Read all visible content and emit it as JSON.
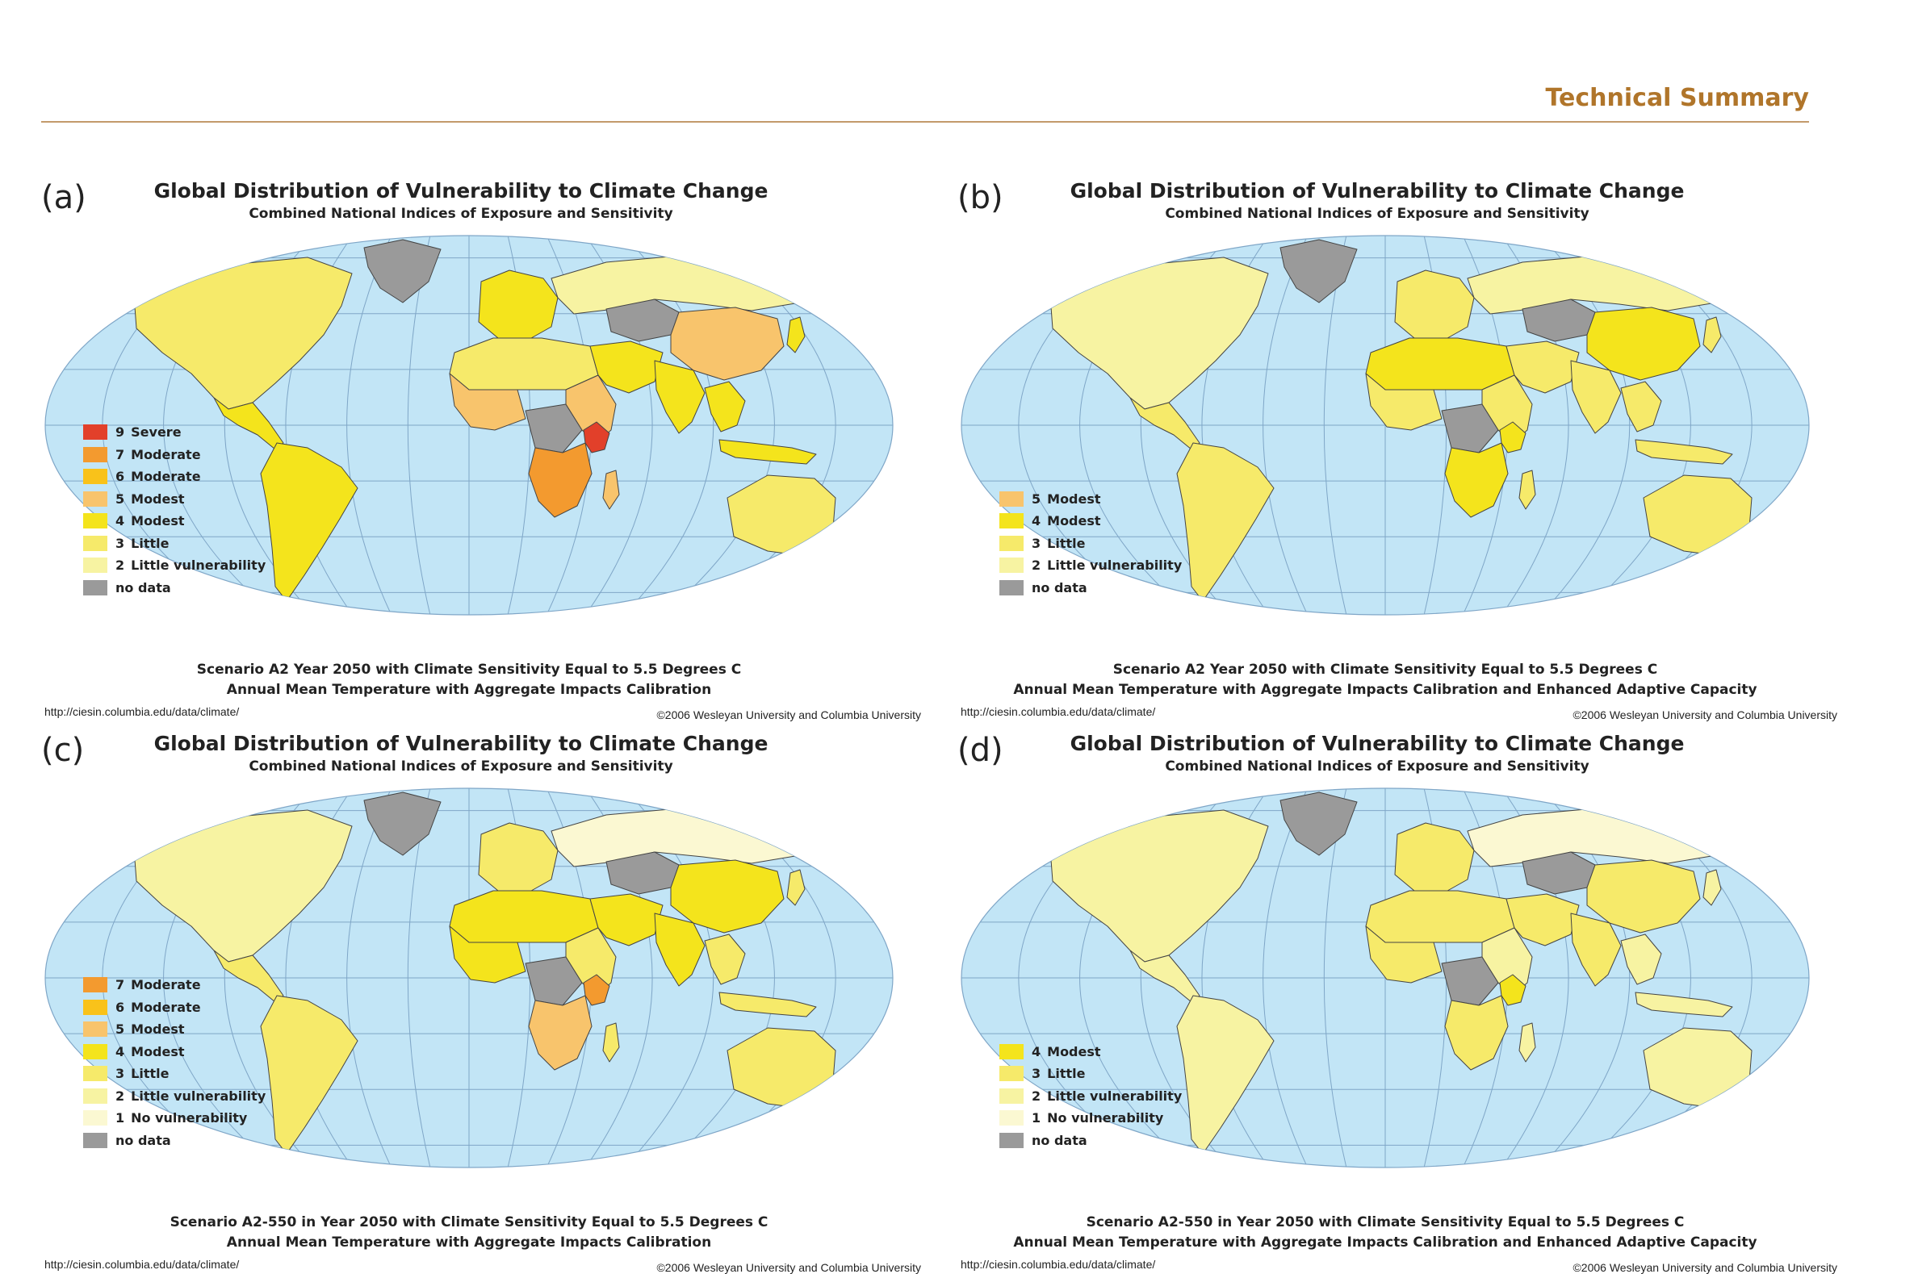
{
  "header": {
    "title": "Technical Summary",
    "rule_color": "#c39a6b",
    "title_color": "#b0752a"
  },
  "colors": {
    "ocean": "#c2e5f6",
    "grid": "#7fa6c7",
    "land_outline": "#444444",
    "no_data": "#9a9a9a"
  },
  "panels": [
    {
      "id": "a",
      "tag": "(a)",
      "title": "Global Distribution of Vulnerability to Climate Change",
      "subtitle": "Combined National Indices of Exposure and Sensitivity",
      "scenario": "Scenario A2 Year 2050 with Climate Sensitivity Equal to 5.5 Degrees C",
      "scenario2": "Annual Mean Temperature with Aggregate Impacts Calibration",
      "url": "http://ciesin.columbia.edu/data/climate/",
      "copyright": "©2006 Wesleyan University and Columbia University",
      "legend": [
        {
          "value": "9",
          "label": "Severe",
          "color": "#e2402a"
        },
        {
          "value": "7",
          "label": "Moderate",
          "color": "#f39a2f"
        },
        {
          "value": "6",
          "label": "Moderate",
          "color": "#f9c21a"
        },
        {
          "value": "5",
          "label": "Modest",
          "color": "#f8c46c"
        },
        {
          "value": "4",
          "label": "Modest",
          "color": "#f4e41c"
        },
        {
          "value": "3",
          "label": "Little",
          "color": "#f6ea6a"
        },
        {
          "value": "2",
          "label": "Little vulnerability",
          "color": "#f7f3a2"
        },
        {
          "value": "",
          "label": "no data",
          "color": "#9a9a9a"
        }
      ],
      "regions": {
        "north_america": "#f6ea6a",
        "greenland": "#9a9a9a",
        "central_america": "#f4e41c",
        "south_america": "#f4e41c",
        "europe": "#f4e41c",
        "russia": "#f7f3a2",
        "north_africa": "#f6ea6a",
        "west_africa": "#f8c46c",
        "central_africa": "#9a9a9a",
        "east_africa": "#f8c46c",
        "kenya": "#e2402a",
        "southern_africa": "#f39a2f",
        "madagascar": "#f8c46c",
        "middle_east": "#f4e41c",
        "central_asia": "#9a9a9a",
        "china": "#f8c46c",
        "india": "#f4e41c",
        "southeast_asia": "#f4e41c",
        "indonesia": "#f4e41c",
        "japan": "#f4e41c",
        "australia": "#f6ea6a",
        "new_zealand": "#f6ea6a"
      }
    },
    {
      "id": "b",
      "tag": "(b)",
      "title": "Global Distribution of Vulnerability to Climate Change",
      "subtitle": "Combined National Indices of Exposure and Sensitivity",
      "scenario": "Scenario A2 Year 2050 with Climate Sensitivity Equal to 5.5 Degrees C",
      "scenario2": "Annual Mean Temperature with Aggregate Impacts Calibration and Enhanced Adaptive Capacity",
      "url": "http://ciesin.columbia.edu/data/climate/",
      "copyright": "©2006 Wesleyan University and Columbia University",
      "legend": [
        {
          "value": "5",
          "label": "Modest",
          "color": "#f8c46c"
        },
        {
          "value": "4",
          "label": "Modest",
          "color": "#f4e41c"
        },
        {
          "value": "3",
          "label": "Little",
          "color": "#f6ea6a"
        },
        {
          "value": "2",
          "label": "Little vulnerability",
          "color": "#f7f3a2"
        },
        {
          "value": "",
          "label": "no data",
          "color": "#9a9a9a"
        }
      ],
      "regions": {
        "north_america": "#f7f3a2",
        "greenland": "#9a9a9a",
        "central_america": "#f6ea6a",
        "south_america": "#f6ea6a",
        "europe": "#f6ea6a",
        "russia": "#f7f3a2",
        "north_africa": "#f4e41c",
        "west_africa": "#f6ea6a",
        "central_africa": "#9a9a9a",
        "east_africa": "#f6ea6a",
        "kenya": "#f4e41c",
        "southern_africa": "#f4e41c",
        "madagascar": "#f6ea6a",
        "middle_east": "#f6ea6a",
        "central_asia": "#9a9a9a",
        "china": "#f4e41c",
        "india": "#f6ea6a",
        "southeast_asia": "#f6ea6a",
        "indonesia": "#f6ea6a",
        "japan": "#f6ea6a",
        "australia": "#f6ea6a",
        "new_zealand": "#f6ea6a"
      }
    },
    {
      "id": "c",
      "tag": "(c)",
      "title": "Global Distribution of Vulnerability to Climate Change",
      "subtitle": "Combined National Indices of Exposure and Sensitivity",
      "scenario": "Scenario A2-550 in Year 2050 with Climate Sensitivity Equal to 5.5 Degrees C",
      "scenario2": "Annual Mean Temperature with Aggregate Impacts Calibration",
      "url": "http://ciesin.columbia.edu/data/climate/",
      "copyright": "©2006 Wesleyan University and Columbia University",
      "legend": [
        {
          "value": "7",
          "label": "Moderate",
          "color": "#f39a2f"
        },
        {
          "value": "6",
          "label": "Moderate",
          "color": "#f9c21a"
        },
        {
          "value": "5",
          "label": "Modest",
          "color": "#f8c46c"
        },
        {
          "value": "4",
          "label": "Modest",
          "color": "#f4e41c"
        },
        {
          "value": "3",
          "label": "Little",
          "color": "#f6ea6a"
        },
        {
          "value": "2",
          "label": "Little vulnerability",
          "color": "#f7f3a2"
        },
        {
          "value": "1",
          "label": "No vulnerability",
          "color": "#fbf8d2"
        },
        {
          "value": "",
          "label": "no data",
          "color": "#9a9a9a"
        }
      ],
      "regions": {
        "north_america": "#f7f3a2",
        "greenland": "#9a9a9a",
        "central_america": "#f6ea6a",
        "south_america": "#f6ea6a",
        "europe": "#f6ea6a",
        "russia": "#fbf8d2",
        "north_africa": "#f4e41c",
        "west_africa": "#f4e41c",
        "central_africa": "#9a9a9a",
        "east_africa": "#f6ea6a",
        "kenya": "#f39a2f",
        "southern_africa": "#f8c46c",
        "madagascar": "#f6ea6a",
        "middle_east": "#f4e41c",
        "central_asia": "#9a9a9a",
        "china": "#f4e41c",
        "india": "#f4e41c",
        "southeast_asia": "#f6ea6a",
        "indonesia": "#f6ea6a",
        "japan": "#f6ea6a",
        "australia": "#f6ea6a",
        "new_zealand": "#f7f3a2"
      }
    },
    {
      "id": "d",
      "tag": "(d)",
      "title": "Global Distribution of Vulnerability to Climate Change",
      "subtitle": "Combined National Indices of Exposure and Sensitivity",
      "scenario": "Scenario A2-550 in Year 2050 with Climate Sensitivity Equal to 5.5 Degrees C",
      "scenario2": "Annual Mean Temperature with Aggregate Impacts Calibration and Enhanced Adaptive Capacity",
      "url": "http://ciesin.columbia.edu/data/climate/",
      "copyright": "©2006 Wesleyan University and Columbia University",
      "legend": [
        {
          "value": "4",
          "label": "Modest",
          "color": "#f4e41c"
        },
        {
          "value": "3",
          "label": "Little",
          "color": "#f6ea6a"
        },
        {
          "value": "2",
          "label": "Little vulnerability",
          "color": "#f7f3a2"
        },
        {
          "value": "1",
          "label": "No vulnerability",
          "color": "#fbf8d2"
        },
        {
          "value": "",
          "label": "no data",
          "color": "#9a9a9a"
        }
      ],
      "regions": {
        "north_america": "#f7f3a2",
        "greenland": "#9a9a9a",
        "central_america": "#f7f3a2",
        "south_america": "#f7f3a2",
        "europe": "#f6ea6a",
        "russia": "#fbf8d2",
        "north_africa": "#f6ea6a",
        "west_africa": "#f6ea6a",
        "central_africa": "#9a9a9a",
        "east_africa": "#f7f3a2",
        "kenya": "#f4e41c",
        "southern_africa": "#f6ea6a",
        "madagascar": "#f7f3a2",
        "middle_east": "#f6ea6a",
        "central_asia": "#9a9a9a",
        "china": "#f6ea6a",
        "india": "#f6ea6a",
        "southeast_asia": "#f7f3a2",
        "indonesia": "#f7f3a2",
        "japan": "#f7f3a2",
        "australia": "#f7f3a2",
        "new_zealand": "#f7f3a2"
      }
    }
  ]
}
